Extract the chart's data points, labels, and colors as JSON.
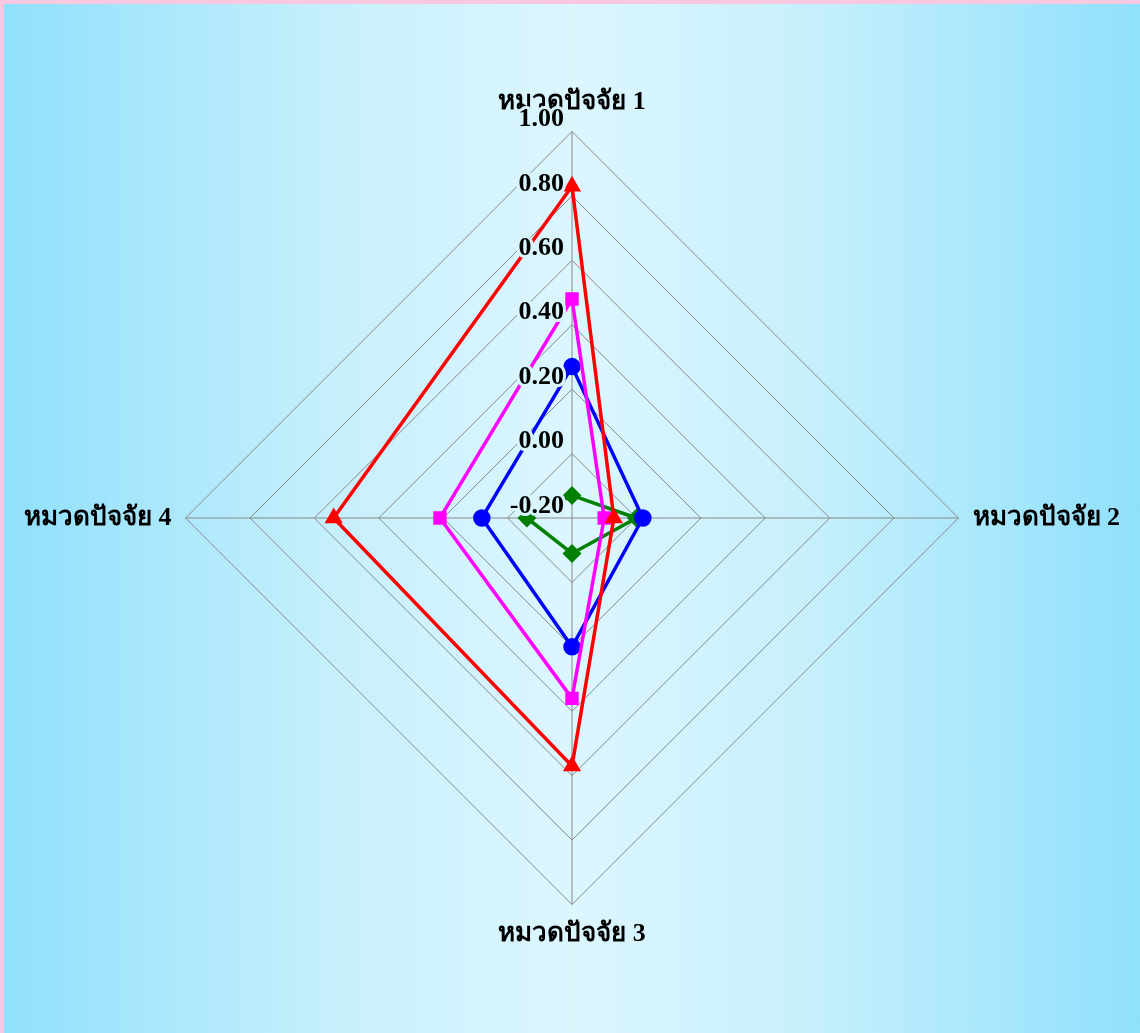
{
  "chart_data": {
    "type": "radar",
    "categories": [
      "หมวดปัจจัย 1",
      "หมวดปัจจัย 2",
      "หมวดปัจจัย 3",
      "หมวดปัจจัย 4"
    ],
    "ylim": [
      -0.2,
      1.0
    ],
    "yticks": [
      {
        "value": -0.2,
        "label": "-0.20"
      },
      {
        "value": 0,
        "label": "0.00"
      },
      {
        "value": 0.2,
        "label": "0.20"
      },
      {
        "value": 0.4,
        "label": "0.40"
      },
      {
        "value": 0.6,
        "label": "0.60"
      },
      {
        "value": 0.8,
        "label": "0.80"
      },
      {
        "value": 1.0,
        "label": "1.00"
      }
    ],
    "grid": true,
    "line_style": "solid",
    "series": [
      {
        "color": "#ff0000",
        "marker": "triangle",
        "values": [
          0.83,
          -0.07,
          0.57,
          0.54
        ]
      },
      {
        "color": "#ff00ff",
        "marker": "square",
        "values": [
          0.48,
          -0.1,
          0.36,
          0.21
        ]
      },
      {
        "color": "#0000ff",
        "marker": "circle",
        "values": [
          0.27,
          0.02,
          0.2,
          0.08
        ]
      },
      {
        "color": "#008000",
        "marker": "diamond",
        "values": [
          -0.13,
          0,
          -0.09,
          -0.06
        ]
      }
    ]
  }
}
